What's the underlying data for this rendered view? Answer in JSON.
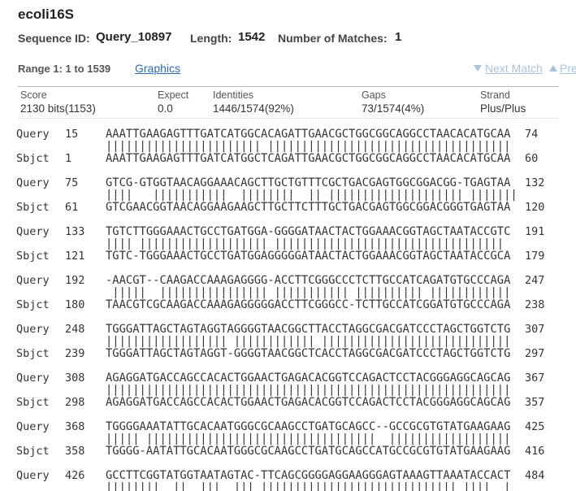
{
  "header": {
    "title": "ecoli16S",
    "meta": [
      {
        "label": "Sequence ID:",
        "value": "Query_10897"
      },
      {
        "label": "Length:",
        "value": "1542"
      },
      {
        "label": "Number of Matches:",
        "value": "1"
      }
    ],
    "range": "Range 1: 1 to 1539",
    "graphics_link": "Graphics",
    "next_match": "Next Match",
    "previous_match": "Previous Match"
  },
  "score_table": {
    "headers": [
      "Score",
      "Expect",
      "Identities",
      "Gaps",
      "Strand"
    ],
    "values": [
      "2130 bits(1153)",
      "0.0",
      "1446/1574(92%)",
      "73/1574(4%)",
      "Plus/Plus"
    ]
  },
  "alignment": [
    {
      "query": {
        "label": "Query",
        "start": 15,
        "seq": "AAATTGAAGAGTTTGATCATGGCACAGATTGAACGCTGGCGGCAGGCCTAACACATGCAA",
        "end": 74
      },
      "match": "||||||||||||||||||||||| ||||||||||||||||||||||||||||||||||||",
      "sbjct": {
        "label": "Sbjct",
        "start": 1,
        "seq": "AAATTGAAGAGTTTGATCATGGCTCAGATTGAACGCTGGCGGCAGGCCTAACACATGCAA",
        "end": 60
      }
    },
    {
      "query": {
        "label": "Query",
        "start": 75,
        "seq": "GTCG-GTGGTAACAGGAAACAGCTTGCTGTTTCGCTGACGAGTGGCGGACGG-TGAGTAA",
        "end": 132
      },
      "match": "||||   |||||||||||  ||||||||  || |||||||||||||||||||| |||||||",
      "sbjct": {
        "label": "Sbjct",
        "start": 61,
        "seq": "GTCGAACGGTAACAGGAAGAAGCTTGCTTCTTTGCTGACGAGTGGCGGACGGGTGAGTAA",
        "end": 120
      }
    },
    {
      "query": {
        "label": "Query",
        "start": 133,
        "seq": "TGTCTTGGGAAACTGCCTGATGGA-GGGGATAACTACTGGAAACGGTAGCTAATACCGTC",
        "end": 191
      },
      "match": "|||| ||||||||||||||||||| ||||||||||||||||||||||||||||||||||  ",
      "sbjct": {
        "label": "Sbjct",
        "start": 121,
        "seq": "TGTC-TGGGAAACTGCCTGATGGAGGGGGATAACTACTGGAAACGGTAGCTAATACCGCA",
        "end": 179
      }
    },
    {
      "query": {
        "label": "Query",
        "start": 192,
        "seq": "-AACGT--CAAGACCAAAGAGGGG-ACCTTCGGGCCCTCTTGCCATCAGATGTGCCCAGA",
        "end": 247
      },
      "match": " |||||  |||||||||||||||| ||||||||||| |||||||||| ||||||||||||",
      "sbjct": {
        "label": "Sbjct",
        "start": 180,
        "seq": "TAACGTCGCAAGACCAAAGAGGGGGACCTTCGGGCC-TCTTGCCATCGGATGTGCCCAGA",
        "end": 238
      }
    },
    {
      "query": {
        "label": "Query",
        "start": 248,
        "seq": "TGGGATTAGCTAGTAGGTAGGGGTAACGGCTTACCTAGGCGACGATCCCTAGCTGGTCTG",
        "end": 307
      },
      "match": "|||||||||||||||||| |||||||||||| ||||||||||||||||||||||||||||",
      "sbjct": {
        "label": "Sbjct",
        "start": 239,
        "seq": "TGGGATTAGCTAGTAGGT-GGGGTAACGGCTCACCTAGGCGACGATCCCTAGCTGGTCTG",
        "end": 297
      }
    },
    {
      "query": {
        "label": "Query",
        "start": 308,
        "seq": "AGAGGATGACCAGCCACACTGGAACTGAGACACGGTCCAGACTCCTACGGGAGGCAGCAG",
        "end": 367
      },
      "match": "||||||||||||||||||||||||||||||||||||||||||||||||||||||||||||",
      "sbjct": {
        "label": "Sbjct",
        "start": 298,
        "seq": "AGAGGATGACCAGCCACACTGGAACTGAGACACGGTCCAGACTCCTACGGGAGGCAGCAG",
        "end": 357
      }
    },
    {
      "query": {
        "label": "Query",
        "start": 368,
        "seq": "TGGGGAAATATTGCACAATGGGCGCAAGCCTGATGCAGCC--GCCGCGTGTATGAAGAAG",
        "end": 425
      },
      "match": "||||| ||||||||||||||||||||||||||||||||||  ||||||||||||||||||",
      "sbjct": {
        "label": "Sbjct",
        "start": 358,
        "seq": "TGGGG-AATATTGCACAATGGGCGCAAGCCTGATGCAGCCATGCCGCGTGTATGAAGAAG",
        "end": 416
      }
    },
    {
      "query": {
        "label": "Query",
        "start": 426,
        "seq": "GCCTTCGGTATGGTAATAGTAC-TTCAGCGGGGAGGAAGGGAGTAAAGTTAAATACCACT",
        "end": 484
      },
      "match": "||||||||  ||  |||  ||| ||||||||||||||||||||||||||||| ||||  |"
    }
  ]
}
